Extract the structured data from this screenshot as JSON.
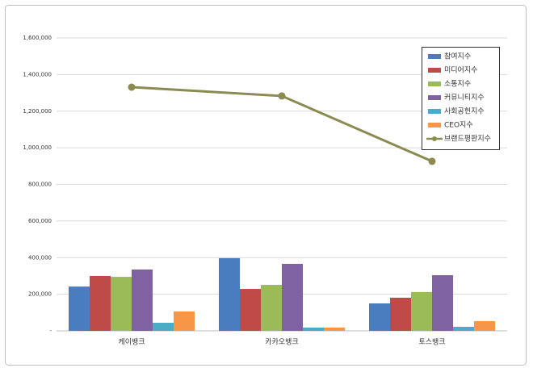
{
  "chart_data": {
    "type": "bar",
    "categories": [
      "케이뱅크",
      "카카오뱅크",
      "토스뱅크"
    ],
    "series": [
      {
        "name": "참여지수",
        "color": "#4a7cc0",
        "values": [
          242000,
          397000,
          150000
        ]
      },
      {
        "name": "미디어지수",
        "color": "#be4b48",
        "values": [
          300000,
          229000,
          181000
        ]
      },
      {
        "name": "소통지수",
        "color": "#9bbb59",
        "values": [
          295000,
          251000,
          212000
        ]
      },
      {
        "name": "커뮤니티지수",
        "color": "#7f62a1",
        "values": [
          335000,
          366000,
          304000
        ]
      },
      {
        "name": "사회공헌지수",
        "color": "#4bacc6",
        "values": [
          44000,
          18000,
          22000
        ]
      },
      {
        "name": "CEO지수",
        "color": "#f79646",
        "values": [
          106000,
          18000,
          53000
        ]
      },
      {
        "name": "브랜드평판지수",
        "color": "#8b8a50",
        "type": "line",
        "values": [
          1331000,
          1283000,
          926000
        ]
      }
    ],
    "ylim": [
      0,
      1600000
    ],
    "yticks": [
      {
        "value": 0,
        "label": "-"
      },
      {
        "value": 200000,
        "label": "200,000"
      },
      {
        "value": 400000,
        "label": "400,000"
      },
      {
        "value": 600000,
        "label": "600,000"
      },
      {
        "value": 800000,
        "label": "800,000"
      },
      {
        "value": 1000000,
        "label": "1,000,000"
      },
      {
        "value": 1200000,
        "label": "1,200,000"
      },
      {
        "value": 1400000,
        "label": "1,400,000"
      },
      {
        "value": 1600000,
        "label": "1,600,000"
      }
    ],
    "grid": true,
    "legend": "top-right"
  }
}
